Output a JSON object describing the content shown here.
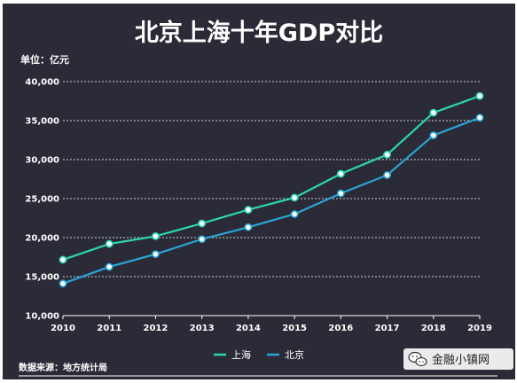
{
  "chart_data": {
    "type": "line",
    "title": "北京上海十年GDP对比",
    "unit_label": "单位：亿元",
    "x": [
      "2010",
      "2011",
      "2012",
      "2013",
      "2014",
      "2015",
      "2016",
      "2017",
      "2018",
      "2019"
    ],
    "ylim": [
      10000,
      40000
    ],
    "yticks": [
      10000,
      15000,
      20000,
      25000,
      30000,
      35000,
      40000
    ],
    "ytick_labels": [
      "10,000",
      "15,000",
      "20,000",
      "25,000",
      "30,000",
      "35,000",
      "40,000"
    ],
    "grid": true,
    "legend_position": "bottom-center",
    "series": [
      {
        "name": "上海",
        "color": "#2ad6b0",
        "values": [
          17166,
          19196,
          20182,
          21818,
          23568,
          25123,
          28179,
          30633,
          36012,
          38155
        ]
      },
      {
        "name": "北京",
        "color": "#2aa4d6",
        "values": [
          14114,
          16252,
          17879,
          19801,
          21331,
          23015,
          25669,
          28015,
          33106,
          35371
        ]
      }
    ]
  },
  "footer": {
    "source": "数据来源：地方统计局",
    "watermark": "金融小镇网",
    "watermark_icon": "wechat-icon"
  }
}
